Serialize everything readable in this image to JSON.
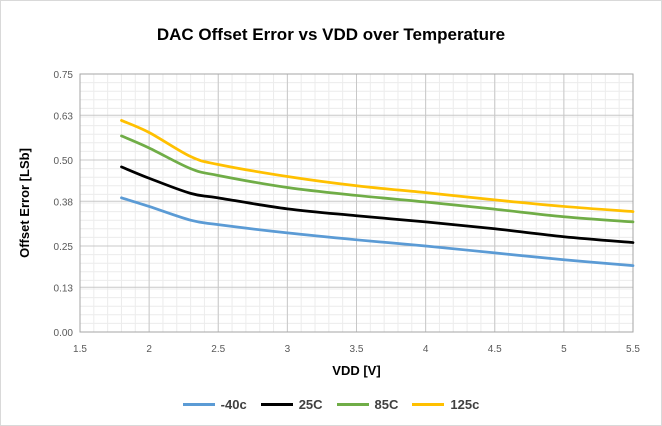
{
  "chart_data": {
    "type": "line",
    "title": "DAC Offset Error vs VDD over Temperature",
    "xlabel": "VDD [V]",
    "ylabel": "Offset Error [LSb]",
    "xlim": [
      1.5,
      5.5
    ],
    "ylim": [
      0,
      0.75
    ],
    "x_ticks": [
      "1.5",
      "2",
      "2.5",
      "3",
      "3.5",
      "4",
      "4.5",
      "5",
      "5.5"
    ],
    "y_ticks": [
      "0.00",
      "0.13",
      "0.25",
      "0.38",
      "0.50",
      "0.63",
      "0.75"
    ],
    "grid": true,
    "legend_position": "bottom",
    "x": [
      1.8,
      2.0,
      2.3,
      2.5,
      3.0,
      3.5,
      4.0,
      4.5,
      5.0,
      5.5
    ],
    "series": [
      {
        "name": "-40c",
        "color": "#5b9bd5",
        "values": [
          0.39,
          0.365,
          0.325,
          0.312,
          0.288,
          0.268,
          0.25,
          0.23,
          0.21,
          0.193
        ]
      },
      {
        "name": "25C",
        "color": "#000000",
        "values": [
          0.48,
          0.447,
          0.403,
          0.39,
          0.358,
          0.338,
          0.32,
          0.3,
          0.277,
          0.26
        ]
      },
      {
        "name": "85C",
        "color": "#70ad47",
        "values": [
          0.57,
          0.535,
          0.475,
          0.455,
          0.42,
          0.397,
          0.378,
          0.357,
          0.335,
          0.32
        ]
      },
      {
        "name": "125c",
        "color": "#ffc000",
        "values": [
          0.615,
          0.58,
          0.51,
          0.487,
          0.452,
          0.425,
          0.405,
          0.384,
          0.365,
          0.35
        ]
      }
    ]
  }
}
